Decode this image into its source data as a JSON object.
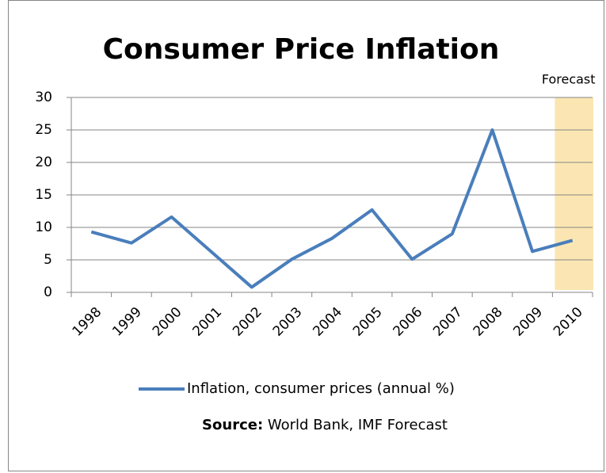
{
  "chart_data": {
    "type": "line",
    "title": "Consumer Price Inflation",
    "categories": [
      "1998",
      "1999",
      "2000",
      "2001",
      "2002",
      "2003",
      "2004",
      "2005",
      "2006",
      "2007",
      "2008",
      "2009",
      "2010"
    ],
    "series": [
      {
        "name": "Inflation, consumer prices (annual %)",
        "color": "#4a7ebb",
        "values": [
          9.3,
          7.6,
          11.6,
          6.2,
          0.8,
          5.1,
          8.3,
          12.7,
          5.1,
          9.0,
          25.0,
          6.3,
          8.0
        ]
      }
    ],
    "ylim": [
      0,
      30
    ],
    "yticks": [
      0,
      5,
      10,
      15,
      20,
      25,
      30
    ],
    "grid": true,
    "annotation": {
      "text": "Forecast",
      "category": "2010",
      "color": "#fbe6b3"
    },
    "legend": "bottom",
    "source_label": "Source:",
    "source": "World Bank, IMF Forecast"
  }
}
